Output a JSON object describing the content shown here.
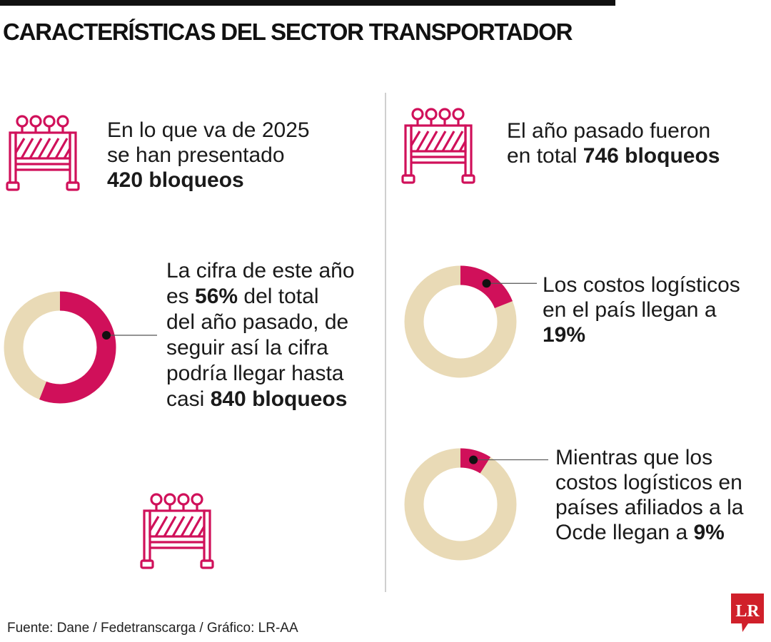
{
  "title": "CARACTERÍSTICAS DEL SECTOR TRANSPORTADOR",
  "colors": {
    "accent": "#d0105a",
    "track": "#e9dab6",
    "text": "#1a1a1a",
    "logo": "#d0202a"
  },
  "blocks": {
    "current_year": {
      "icon": "road-barrier-icon",
      "line1": "En lo que va de 2025",
      "line2": "se han presentado",
      "line3_bold": "420 bloqueos"
    },
    "last_year": {
      "icon": "road-barrier-icon",
      "line1": "El año pasado fueron",
      "line2_pre": "en total ",
      "line2_bold": "746 bloqueos"
    },
    "share": {
      "line1": "La cifra de este año",
      "line2_pre": "es ",
      "line2_bold": "56%",
      "line2_post": " del total",
      "line3": "del año pasado, de",
      "line4": "seguir así la cifra",
      "line5": "podría llegar hasta",
      "line6_pre": "casi ",
      "line6_bold": "840 bloqueos"
    },
    "logistics_country": {
      "line1": "Los costos logísticos",
      "line2": "en el país llegan a",
      "line3_bold": "19%"
    },
    "logistics_ocde": {
      "line1": "Mientras que los",
      "line2": "costos logísticos en",
      "line3": "países afiliados a la",
      "line4_pre": "Ocde llegan a ",
      "line4_bold": "9%"
    }
  },
  "chart_data": [
    {
      "type": "pie",
      "variant": "donut",
      "label": "La cifra de este año es 56% del total del año pasado",
      "values": [
        56,
        44
      ]
    },
    {
      "type": "pie",
      "variant": "donut",
      "label": "Los costos logísticos en el país llegan a 19%",
      "values": [
        19,
        81
      ]
    },
    {
      "type": "pie",
      "variant": "donut",
      "label": "Ocde llegan a 9%",
      "values": [
        9,
        91
      ]
    }
  ],
  "footer": {
    "source": "Fuente: Dane / Fedetranscarga / Gráfico: LR-AA",
    "logo": "LR"
  }
}
